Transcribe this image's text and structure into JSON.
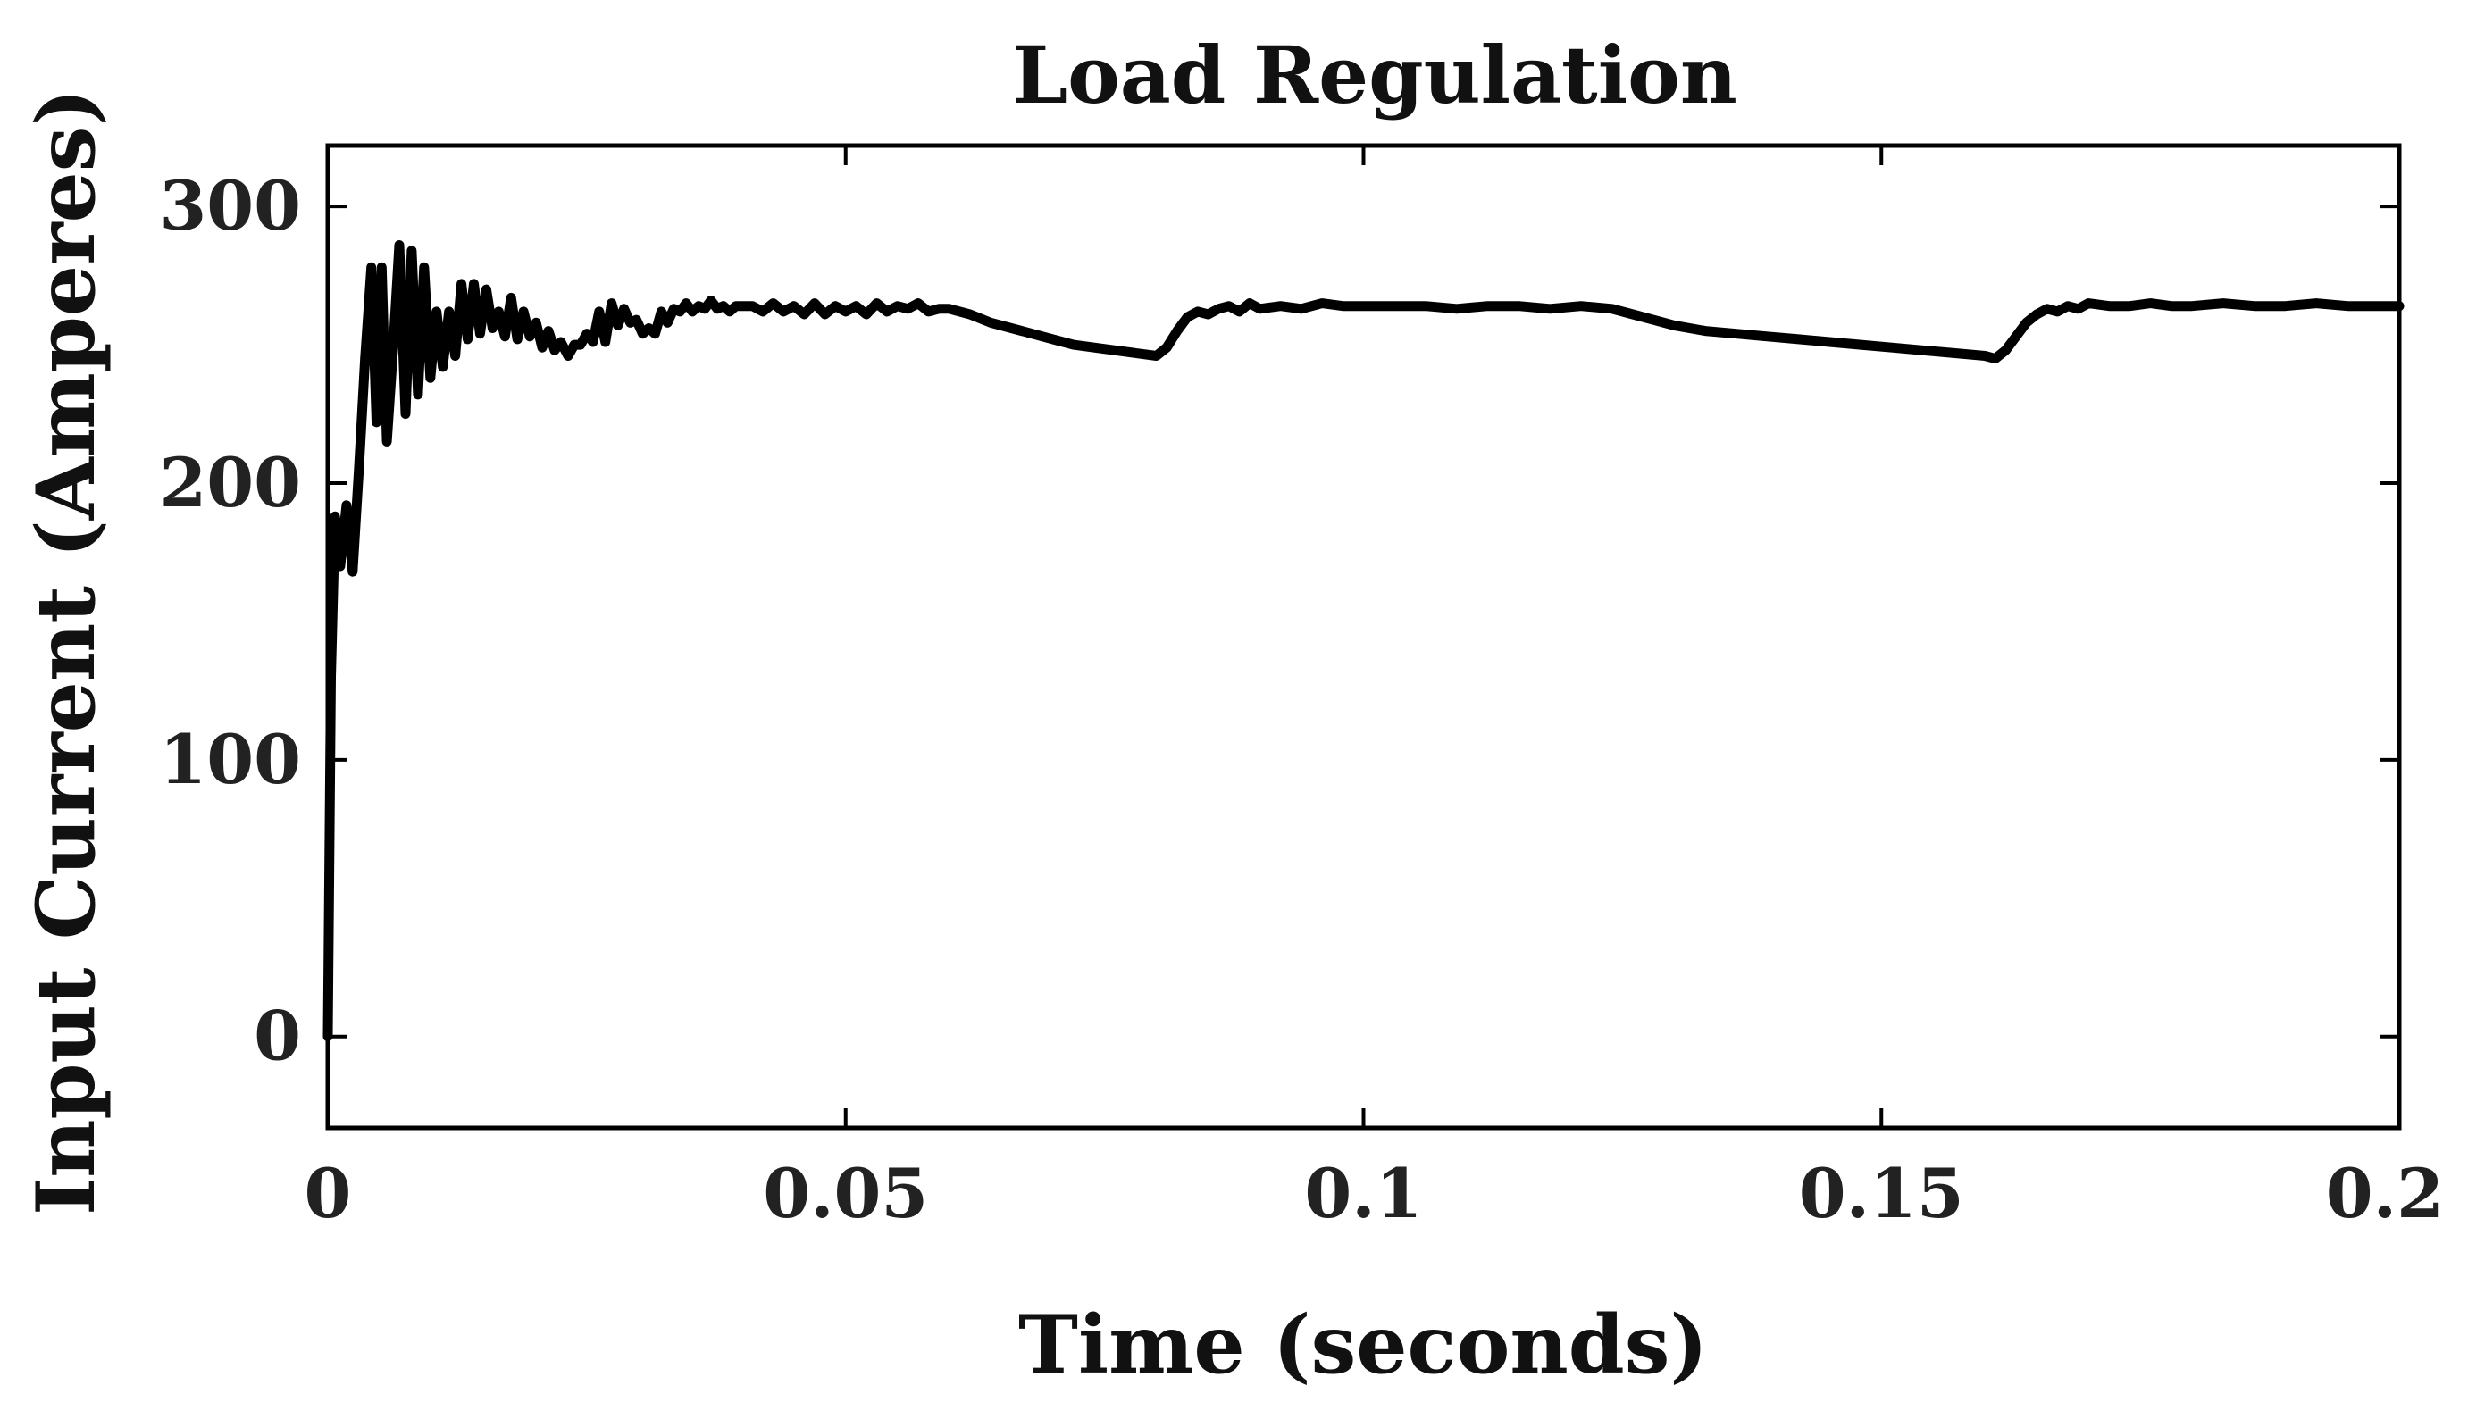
{
  "chart_data": {
    "type": "line",
    "title": "Load Regulation",
    "xlabel": "Time (seconds)",
    "ylabel": "Input Current (Amperes)",
    "xlim": [
      0,
      0.2
    ],
    "ylim": [
      -33,
      322
    ],
    "xticks": [
      0,
      0.05,
      0.1,
      0.15,
      0.2
    ],
    "xtick_labels": [
      "0",
      "0.05",
      "0.1",
      "0.15",
      "0.2"
    ],
    "yticks": [
      0,
      100,
      200,
      300
    ],
    "ytick_labels": [
      "0",
      "100",
      "200",
      "300"
    ],
    "grid": false,
    "legend": "none",
    "line_color": "#000000",
    "series": [
      {
        "x": [
          0,
          0.0003,
          0.0007,
          0.0012,
          0.0018,
          0.0024,
          0.003,
          0.0036,
          0.0042,
          0.0047,
          0.0052,
          0.0057,
          0.0063,
          0.0069,
          0.0075,
          0.0081,
          0.0087,
          0.0093,
          0.0099,
          0.0105,
          0.0111,
          0.0117,
          0.0123,
          0.0129,
          0.0135,
          0.0141,
          0.0147,
          0.0153,
          0.0159,
          0.0165,
          0.0171,
          0.0177,
          0.0183,
          0.0189,
          0.0195,
          0.0201,
          0.0207,
          0.0213,
          0.0219,
          0.0225,
          0.0232,
          0.0238,
          0.0244,
          0.025,
          0.0256,
          0.0262,
          0.0268,
          0.0274,
          0.028,
          0.0286,
          0.0292,
          0.0298,
          0.0304,
          0.031,
          0.0316,
          0.0322,
          0.0328,
          0.0334,
          0.034,
          0.0346,
          0.0352,
          0.0358,
          0.0364,
          0.037,
          0.0376,
          0.0382,
          0.0388,
          0.0394,
          0.04,
          0.041,
          0.042,
          0.043,
          0.044,
          0.045,
          0.046,
          0.047,
          0.048,
          0.049,
          0.05,
          0.051,
          0.052,
          0.053,
          0.054,
          0.055,
          0.056,
          0.057,
          0.058,
          0.059,
          0.06,
          0.062,
          0.064,
          0.066,
          0.068,
          0.07,
          0.072,
          0.074,
          0.076,
          0.078,
          0.08,
          0.081,
          0.082,
          0.083,
          0.084,
          0.085,
          0.086,
          0.087,
          0.088,
          0.089,
          0.09,
          0.092,
          0.094,
          0.096,
          0.098,
          0.1,
          0.103,
          0.106,
          0.109,
          0.112,
          0.115,
          0.118,
          0.121,
          0.124,
          0.126,
          0.128,
          0.13,
          0.133,
          0.136,
          0.139,
          0.142,
          0.145,
          0.148,
          0.151,
          0.154,
          0.157,
          0.16,
          0.161,
          0.162,
          0.163,
          0.164,
          0.165,
          0.166,
          0.167,
          0.168,
          0.169,
          0.17,
          0.172,
          0.174,
          0.176,
          0.178,
          0.18,
          0.183,
          0.186,
          0.189,
          0.192,
          0.195,
          0.198,
          0.2
        ],
        "values": [
          0,
          130,
          188,
          170,
          192,
          168,
          205,
          245,
          278,
          222,
          278,
          215,
          248,
          286,
          225,
          284,
          232,
          278,
          238,
          262,
          242,
          262,
          246,
          272,
          252,
          272,
          254,
          270,
          256,
          262,
          253,
          267,
          252,
          262,
          253,
          258,
          249,
          255,
          248,
          251,
          246,
          250,
          250,
          254,
          251,
          262,
          251,
          265,
          257,
          263,
          258,
          259,
          254,
          256,
          254,
          262,
          258,
          263,
          262,
          265,
          262,
          264,
          263,
          266,
          263,
          264,
          262,
          264,
          264,
          264,
          262,
          265,
          262,
          264,
          261,
          265,
          261,
          264,
          262,
          264,
          261,
          265,
          262,
          264,
          263,
          265,
          262,
          263,
          263,
          261,
          258,
          256,
          254,
          252,
          250,
          249,
          248,
          247,
          246,
          249,
          255,
          260,
          262,
          261,
          263,
          264,
          262,
          265,
          263,
          264,
          263,
          265,
          264,
          264,
          264,
          264,
          263,
          264,
          264,
          263,
          264,
          263,
          261,
          259,
          257,
          255,
          254,
          253,
          252,
          251,
          250,
          249,
          248,
          247,
          246,
          245,
          248,
          253,
          258,
          261,
          263,
          262,
          264,
          263,
          265,
          264,
          264,
          265,
          264,
          264,
          265,
          264,
          264,
          265,
          264,
          264,
          264
        ]
      }
    ]
  }
}
